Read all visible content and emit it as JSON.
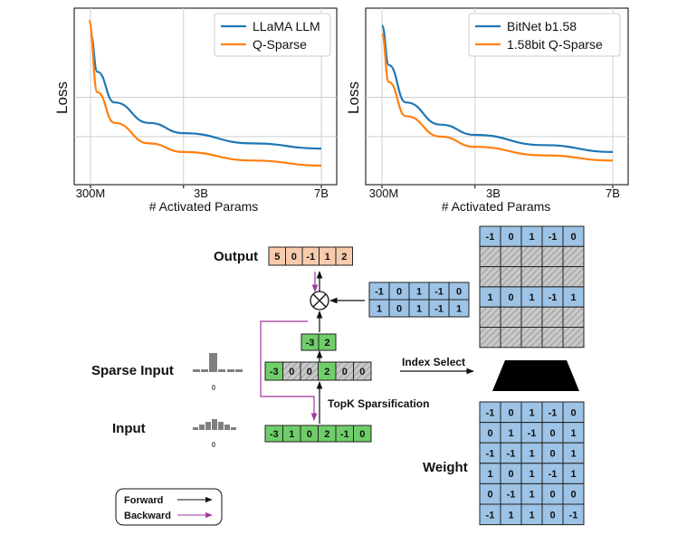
{
  "chart_data": [
    {
      "type": "line",
      "ylabel": "Loss",
      "xlabel": "# Activated Params",
      "x_ticks": [
        "300M",
        "3B",
        "7B"
      ],
      "grid": true,
      "legend_position": "top-right",
      "series": [
        {
          "name": "LLaMA LLM",
          "color": "#1f77b4",
          "points": [
            [
              0.3,
              1.0
            ],
            [
              0.5,
              0.78
            ],
            [
              1.0,
              0.6
            ],
            [
              2.0,
              0.48
            ],
            [
              3.0,
              0.42
            ],
            [
              5.0,
              0.36
            ],
            [
              7.0,
              0.33
            ]
          ]
        },
        {
          "name": "Q-Sparse",
          "color": "#ff7f0e",
          "points": [
            [
              0.25,
              1.08
            ],
            [
              0.5,
              0.66
            ],
            [
              1.0,
              0.48
            ],
            [
              2.0,
              0.36
            ],
            [
              3.0,
              0.31
            ],
            [
              5.0,
              0.26
            ],
            [
              7.0,
              0.23
            ]
          ]
        }
      ]
    },
    {
      "type": "line",
      "ylabel": "Loss",
      "xlabel": "# Activated Params",
      "x_ticks": [
        "300M",
        "3B",
        "7B"
      ],
      "grid": true,
      "legend_position": "top-right",
      "series": [
        {
          "name": "BitNet b1.58",
          "color": "#1f77b4",
          "points": [
            [
              0.3,
              1.05
            ],
            [
              0.5,
              0.82
            ],
            [
              1.0,
              0.6
            ],
            [
              2.0,
              0.47
            ],
            [
              3.0,
              0.41
            ],
            [
              5.0,
              0.35
            ],
            [
              7.0,
              0.31
            ]
          ]
        },
        {
          "name": "1.58bit Q-Sparse",
          "color": "#ff7f0e",
          "points": [
            [
              0.3,
              1.0
            ],
            [
              0.5,
              0.72
            ],
            [
              1.0,
              0.52
            ],
            [
              2.0,
              0.4
            ],
            [
              3.0,
              0.34
            ],
            [
              5.0,
              0.29
            ],
            [
              7.0,
              0.26
            ]
          ]
        }
      ]
    }
  ],
  "diagram": {
    "output_label": "Output",
    "output_values": [
      "5",
      "0",
      "-1",
      "1",
      "2"
    ],
    "selected_weight_rows": [
      [
        "-1",
        "0",
        "1",
        "-1",
        "0"
      ],
      [
        "1",
        "0",
        "1",
        "-1",
        "1"
      ]
    ],
    "selected_input_values": [
      "-3",
      "2"
    ],
    "sparse_vector": [
      "-3",
      "0",
      "0",
      "2",
      "0",
      "0"
    ],
    "input_vector": [
      "-3",
      "1",
      "0",
      "2",
      "-1",
      "0"
    ],
    "sparse_input_label": "Sparse Input",
    "input_label": "Input",
    "zero_tick": "0",
    "index_select_label": "Index Select",
    "topk_label": "TopK Sparsification",
    "weight_label": "Weight",
    "selected_rows_matrix": [
      [
        "-1",
        "0",
        "1",
        "-1",
        "0"
      ],
      null,
      null,
      [
        "1",
        "0",
        "1",
        "-1",
        "1"
      ],
      null,
      null
    ],
    "weight_matrix": [
      [
        "-1",
        "0",
        "1",
        "-1",
        "0"
      ],
      [
        "0",
        "1",
        "-1",
        "0",
        "1"
      ],
      [
        "-1",
        "-1",
        "1",
        "0",
        "1"
      ],
      [
        "1",
        "0",
        "1",
        "-1",
        "1"
      ],
      [
        "0",
        "-1",
        "1",
        "0",
        "0"
      ],
      [
        "-1",
        "1",
        "1",
        "0",
        "-1"
      ]
    ],
    "legend": {
      "forward": "Forward",
      "backward": "Backward"
    },
    "colors": {
      "output": "#f8cbad",
      "weight": "#9dc3e6",
      "input": "#70ce6a",
      "backward": "#a0359e"
    }
  }
}
